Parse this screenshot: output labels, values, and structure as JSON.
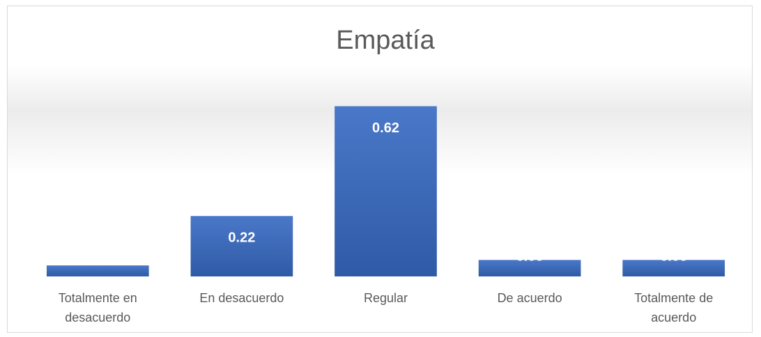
{
  "chart_data": {
    "type": "bar",
    "title": "Empatía",
    "categories": [
      "Totalmente en desacuerdo",
      "En desacuerdo",
      "Regular",
      "De acuerdo",
      "Totalmente de acuerdo"
    ],
    "values": [
      0.04,
      0.22,
      0.62,
      0.06,
      0.06
    ],
    "color": "#4472c4",
    "ylim": [
      0,
      0.7
    ]
  }
}
